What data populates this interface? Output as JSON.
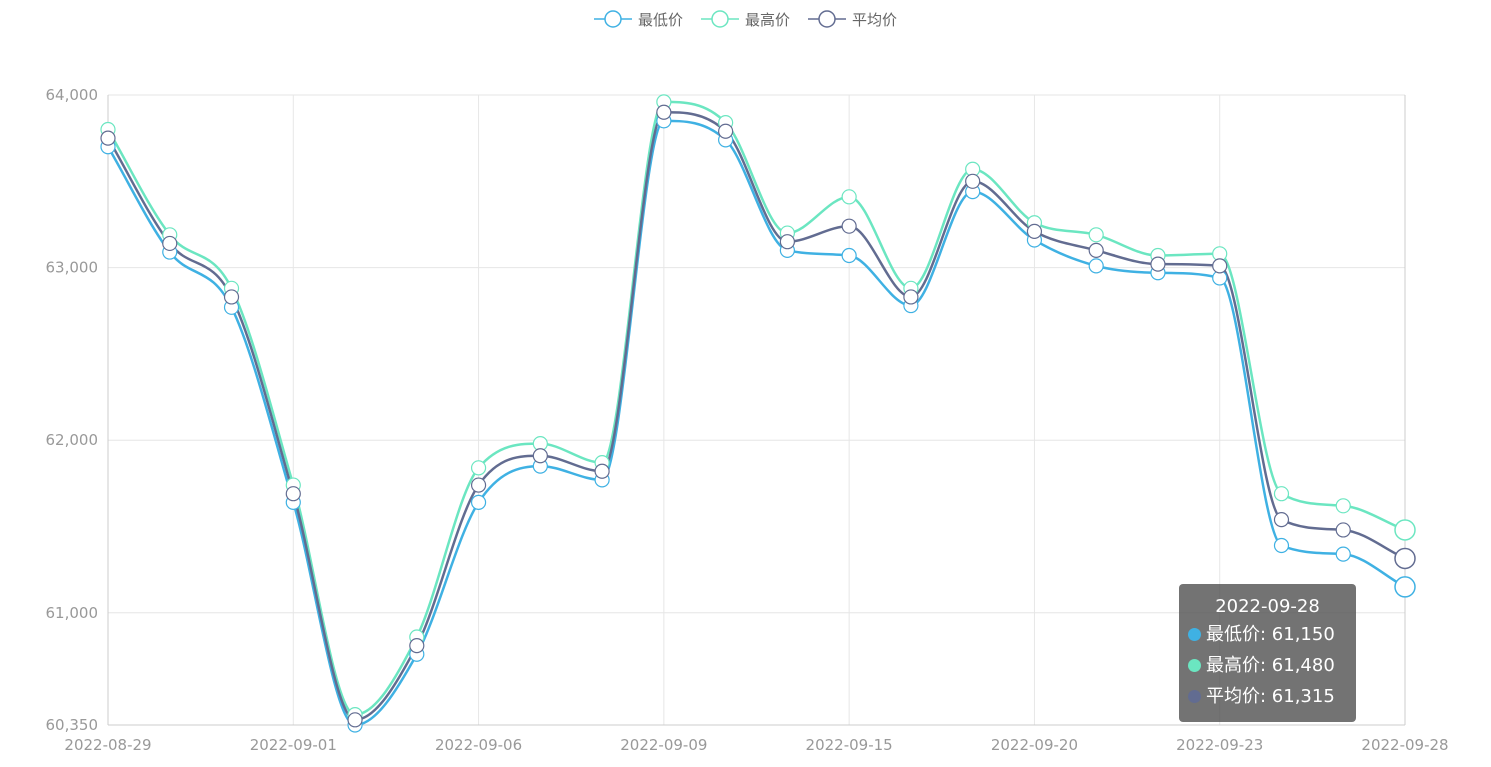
{
  "legend": [
    {
      "name": "最低价",
      "color": "#3fb1e3"
    },
    {
      "name": "最高价",
      "color": "#6be6c1"
    },
    {
      "name": "平均价",
      "color": "#626c91"
    }
  ],
  "tooltip": {
    "title": "2022-09-28",
    "rows": [
      {
        "label": "最低价: 61,150",
        "color": "#3fb1e3"
      },
      {
        "label": "最高价: 61,480",
        "color": "#6be6c1"
      },
      {
        "label": "平均价: 61,315",
        "color": "#626c91"
      }
    ]
  },
  "chart_data": {
    "type": "line",
    "smooth": true,
    "title": "",
    "xlabel": "",
    "ylabel": "",
    "ylim": [
      60350,
      64000
    ],
    "yticks": [
      60350,
      61000,
      62000,
      63000,
      64000
    ],
    "ytick_labels": [
      "60,350",
      "61,000",
      "62,000",
      "63,000",
      "64,000"
    ],
    "xtick_labels": [
      "2022-08-29",
      "2022-09-01",
      "2022-09-06",
      "2022-09-09",
      "2022-09-15",
      "2022-09-20",
      "2022-09-23",
      "2022-09-28"
    ],
    "grid": true,
    "legend_position": "top-center",
    "series": [
      {
        "name": "最低价",
        "color": "#3fb1e3",
        "values": [
          63700,
          63090,
          62770,
          61640,
          60350,
          60760,
          61640,
          61850,
          61770,
          63850,
          63740,
          63100,
          63070,
          62780,
          63440,
          63160,
          63010,
          62970,
          62940,
          61390,
          61340,
          61150
        ]
      },
      {
        "name": "最高价",
        "color": "#6be6c1",
        "values": [
          63800,
          63190,
          62880,
          61740,
          60410,
          60860,
          61840,
          61980,
          61870,
          63960,
          63840,
          63200,
          63410,
          62880,
          63570,
          63260,
          63190,
          63070,
          63080,
          61690,
          61620,
          61480
        ]
      },
      {
        "name": "平均价",
        "color": "#626c91",
        "values": [
          63750,
          63140,
          62830,
          61690,
          60380,
          60810,
          61740,
          61910,
          61820,
          63900,
          63790,
          63150,
          63240,
          62830,
          63500,
          63210,
          63100,
          63020,
          63010,
          61540,
          61480,
          61315
        ]
      }
    ]
  }
}
